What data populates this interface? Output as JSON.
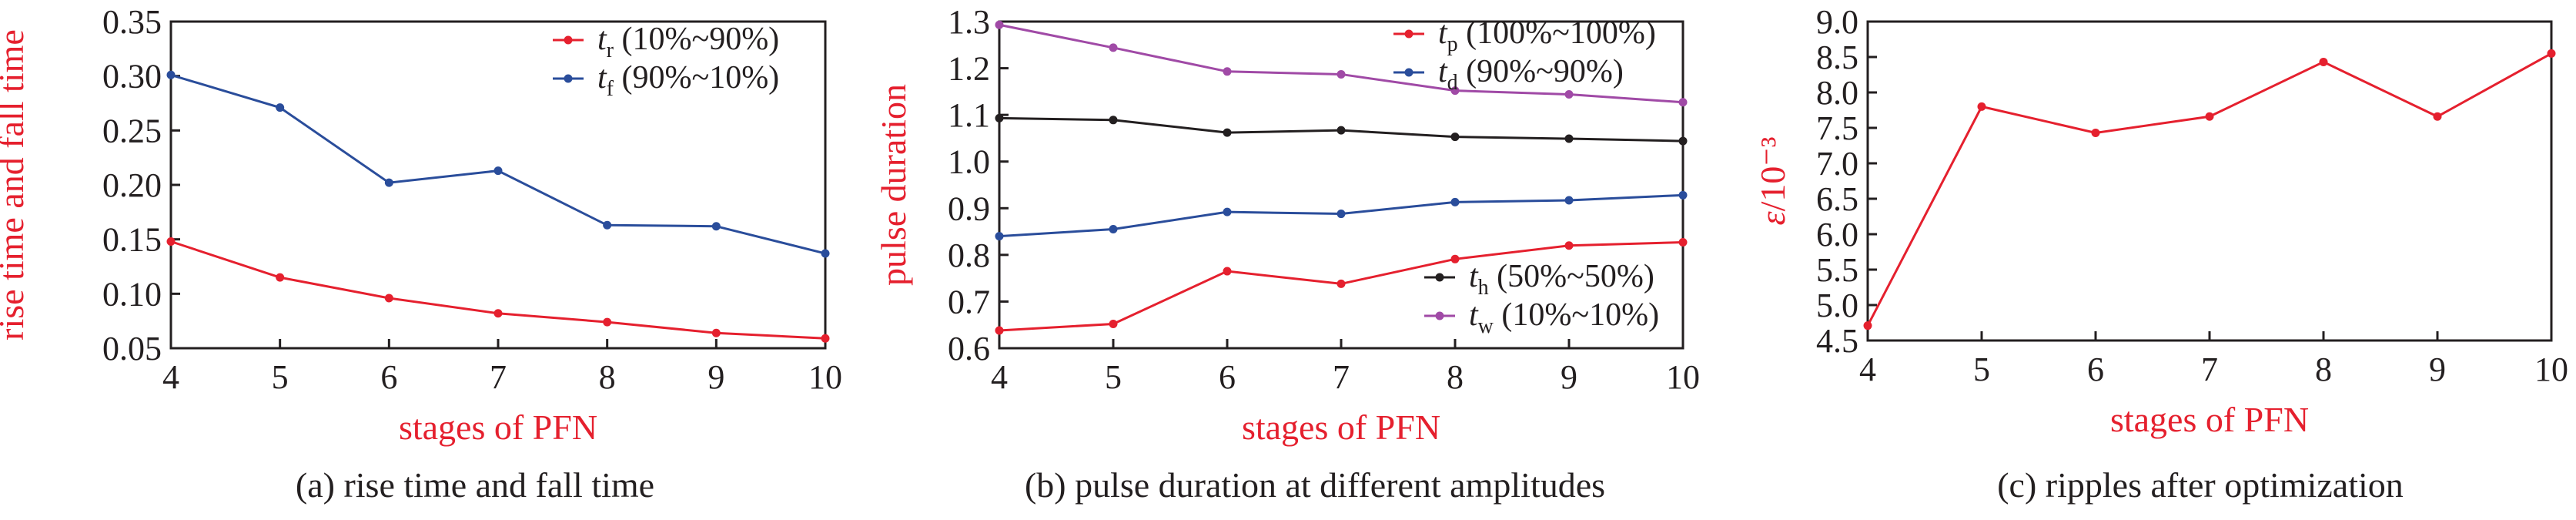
{
  "chart_data": [
    {
      "type": "line",
      "caption": "(a) rise time and fall time",
      "xlabel": "stages of PFN",
      "ylabel": "rise time and fall time",
      "xlim": [
        4,
        10
      ],
      "ylim": [
        0.05,
        0.35
      ],
      "x_ticks": [
        "4",
        "5",
        "6",
        "7",
        "8",
        "9",
        "10"
      ],
      "y_ticks": [
        "0.05",
        "0.10",
        "0.15",
        "0.20",
        "0.25",
        "0.30",
        "0.35"
      ],
      "grid": false,
      "legend_position": "top-right",
      "x": [
        4,
        5,
        6,
        7,
        8,
        9,
        10
      ],
      "series": [
        {
          "name_sym": "t",
          "name_sub": "r",
          "name_rest": " (10%~90%)",
          "color": "#e5202e",
          "values": [
            0.148,
            0.115,
            0.096,
            0.082,
            0.074,
            0.064,
            0.059
          ]
        },
        {
          "name_sym": "t",
          "name_sub": "f",
          "name_rest": " (90%~10%)",
          "color": "#2a4d9b",
          "values": [
            0.301,
            0.271,
            0.202,
            0.213,
            0.163,
            0.162,
            0.137
          ]
        }
      ]
    },
    {
      "type": "line",
      "caption": "(b) pulse duration at different amplitudes",
      "xlabel": "stages of PFN",
      "ylabel": "pulse duration",
      "xlim": [
        4,
        10
      ],
      "ylim": [
        0.6,
        1.3
      ],
      "x_ticks": [
        "4",
        "5",
        "6",
        "7",
        "8",
        "9",
        "10"
      ],
      "y_ticks": [
        "0.6",
        "0.7",
        "0.8",
        "0.9",
        "1.0",
        "1.1",
        "1.2",
        "1.3"
      ],
      "grid": false,
      "legend_position": "top-right and bottom-right",
      "x": [
        4,
        5,
        6,
        7,
        8,
        9,
        10
      ],
      "series": [
        {
          "name_sym": "t",
          "name_sub": "p",
          "name_rest": " (100%~100%)",
          "color": "#e5202e",
          "values": [
            0.638,
            0.652,
            0.765,
            0.738,
            0.791,
            0.82,
            0.827
          ]
        },
        {
          "name_sym": "t",
          "name_sub": "d",
          "name_rest": " (90%~90%)",
          "color": "#2a4d9b",
          "values": [
            0.84,
            0.855,
            0.892,
            0.888,
            0.913,
            0.917,
            0.928
          ]
        },
        {
          "name_sym": "t",
          "name_sub": "h",
          "name_rest": " (50%~50%)",
          "color": "#231f20",
          "values": [
            1.093,
            1.089,
            1.062,
            1.067,
            1.053,
            1.049,
            1.044
          ]
        },
        {
          "name_sym": "t",
          "name_sub": "w",
          "name_rest": " (10%~10%)",
          "color": "#a04aa6",
          "values": [
            1.293,
            1.244,
            1.193,
            1.187,
            1.152,
            1.144,
            1.127
          ]
        }
      ]
    },
    {
      "type": "line",
      "caption": "(c) ripples after optimization",
      "xlabel": "stages of PFN",
      "ylabel": "ε/10⁻³",
      "xlim": [
        4,
        10
      ],
      "ylim": [
        4.5,
        9.0
      ],
      "x_ticks": [
        "4",
        "5",
        "6",
        "7",
        "8",
        "9",
        "10"
      ],
      "y_ticks": [
        "4.5",
        "5.0",
        "5.5",
        "6.0",
        "6.5",
        "7.0",
        "7.5",
        "8.0",
        "8.5",
        "9.0"
      ],
      "grid": false,
      "x": [
        4,
        5,
        6,
        7,
        8,
        9,
        10
      ],
      "series": [
        {
          "color": "#e5202e",
          "values": [
            4.71,
            7.8,
            7.43,
            7.66,
            8.43,
            7.66,
            8.55
          ]
        }
      ]
    }
  ]
}
